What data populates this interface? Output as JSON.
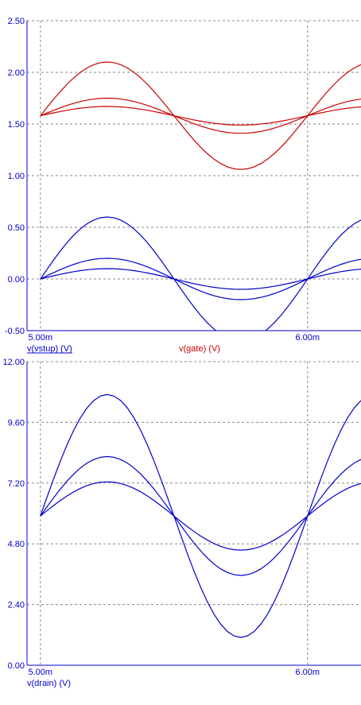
{
  "chart_data": [
    {
      "type": "line",
      "xlim": [
        0.00495,
        0.0062
      ],
      "ylim": [
        -0.5,
        2.5
      ],
      "x_ticks": [
        {
          "value": 0.005,
          "label": "5.00m"
        },
        {
          "value": 0.006,
          "label": "6.00m"
        }
      ],
      "y_ticks": [
        {
          "value": 2.5,
          "label": "2.50"
        },
        {
          "value": 2.0,
          "label": "2.00"
        },
        {
          "value": 1.5,
          "label": "1.50"
        },
        {
          "value": 1.0,
          "label": "1.00"
        },
        {
          "value": 0.5,
          "label": "0.50"
        },
        {
          "value": 0.0,
          "label": "0.00"
        },
        {
          "value": -0.5,
          "label": "-0.50"
        }
      ],
      "legend": [
        {
          "label": "v(vstup) (V)",
          "color": "#0000cc",
          "underline": true
        },
        {
          "label": "v(gate) (V)",
          "color": "#cc0000",
          "underline": false
        }
      ],
      "series": [
        {
          "group": "v(gate)",
          "color": "#cc0000",
          "x_start": 0.005,
          "x_end": 0.0062,
          "dx": 2.5e-05,
          "offset": 1.58,
          "amplitude": 0.52,
          "period": 0.001
        },
        {
          "group": "v(gate)",
          "color": "#cc0000",
          "x_start": 0.005,
          "x_end": 0.0062,
          "dx": 2.5e-05,
          "offset": 1.58,
          "amplitude": 0.17,
          "period": 0.001
        },
        {
          "group": "v(gate)",
          "color": "#cc0000",
          "x_start": 0.005,
          "x_end": 0.0062,
          "dx": 2.5e-05,
          "offset": 1.58,
          "amplitude": 0.09,
          "period": 0.001
        },
        {
          "group": "v(vstup)",
          "color": "#0000cc",
          "x_start": 0.005,
          "x_end": 0.0062,
          "dx": 2.5e-05,
          "offset": 0.0,
          "amplitude": 0.6,
          "period": 0.001
        },
        {
          "group": "v(vstup)",
          "color": "#0000cc",
          "x_start": 0.005,
          "x_end": 0.0062,
          "dx": 2.5e-05,
          "offset": 0.0,
          "amplitude": 0.2,
          "period": 0.001
        },
        {
          "group": "v(vstup)",
          "color": "#0000cc",
          "x_start": 0.005,
          "x_end": 0.0062,
          "dx": 2.5e-05,
          "offset": 0.0,
          "amplitude": 0.1,
          "period": 0.001
        }
      ]
    },
    {
      "type": "line",
      "xlim": [
        0.00495,
        0.0062
      ],
      "ylim": [
        0.0,
        12.0
      ],
      "x_ticks": [
        {
          "value": 0.005,
          "label": "5.00m"
        },
        {
          "value": 0.006,
          "label": "6.00m"
        }
      ],
      "y_ticks": [
        {
          "value": 12.0,
          "label": "12.00"
        },
        {
          "value": 9.6,
          "label": "9.60"
        },
        {
          "value": 7.2,
          "label": "7.20"
        },
        {
          "value": 4.8,
          "label": "4.80"
        },
        {
          "value": 2.4,
          "label": "2.40"
        },
        {
          "value": 0.0,
          "label": "0.00"
        }
      ],
      "legend": [
        {
          "label": "v(drain) (V)",
          "color": "#0000cc",
          "underline": false
        }
      ],
      "series": [
        {
          "group": "v(drain)",
          "color": "#0000cc",
          "x_start": 0.005,
          "x_end": 0.0062,
          "dx": 2.5e-05,
          "offset": 5.9,
          "amplitude": 4.8,
          "period": 0.001,
          "min": 0.15
        },
        {
          "group": "v(drain)",
          "color": "#0000cc",
          "x_start": 0.005,
          "x_end": 0.0062,
          "dx": 2.5e-05,
          "offset": 5.9,
          "amplitude": 2.35,
          "period": 0.001
        },
        {
          "group": "v(drain)",
          "color": "#0000cc",
          "x_start": 0.005,
          "x_end": 0.0062,
          "dx": 2.5e-05,
          "offset": 5.9,
          "amplitude": 1.35,
          "period": 0.001
        }
      ]
    }
  ]
}
